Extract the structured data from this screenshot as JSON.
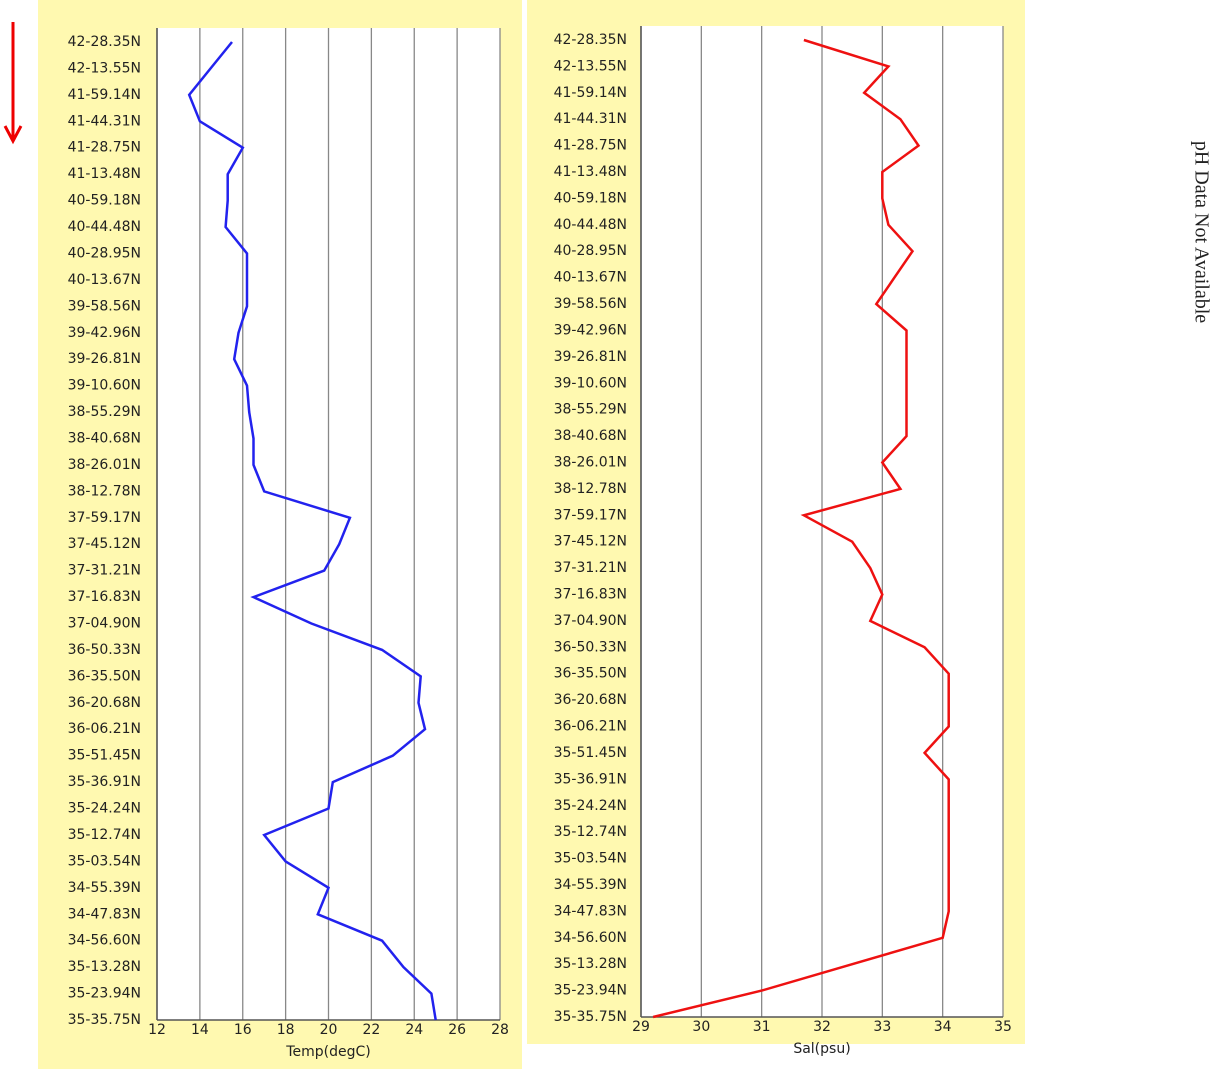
{
  "chart_data": [
    {
      "type": "line",
      "orientation": "horizontal",
      "color": "#2222ee",
      "xlabel": "Temp(degC)",
      "categories": [
        "42-28.35N",
        "42-13.55N",
        "41-59.14N",
        "41-44.31N",
        "41-28.75N",
        "41-13.48N",
        "40-59.18N",
        "40-44.48N",
        "40-28.95N",
        "40-13.67N",
        "39-58.56N",
        "39-42.96N",
        "39-26.81N",
        "39-10.60N",
        "38-55.29N",
        "38-40.68N",
        "38-26.01N",
        "38-12.78N",
        "37-59.17N",
        "37-45.12N",
        "37-31.21N",
        "37-16.83N",
        "37-04.90N",
        "36-50.33N",
        "36-35.50N",
        "36-20.68N",
        "36-06.21N",
        "35-51.45N",
        "35-36.91N",
        "35-24.24N",
        "35-12.74N",
        "35-03.54N",
        "34-55.39N",
        "34-47.83N",
        "34-56.60N",
        "35-13.28N",
        "35-23.94N",
        "35-35.75N"
      ],
      "values": [
        15.5,
        14.5,
        13.5,
        14,
        16,
        15.3,
        15.3,
        15.2,
        16.2,
        16.2,
        16.2,
        15.8,
        15.6,
        16.2,
        16.3,
        16.5,
        16.5,
        17,
        21,
        20.5,
        19.8,
        16.5,
        19.2,
        22.5,
        24.3,
        24.2,
        24.5,
        23,
        20.2,
        20,
        17,
        18,
        20,
        19.5,
        22.5,
        23.5,
        24.8,
        25
      ],
      "xlim": [
        12,
        28
      ],
      "xticks": [
        12,
        14,
        16,
        18,
        20,
        22,
        24,
        26,
        28
      ],
      "grid": true
    },
    {
      "type": "line",
      "orientation": "horizontal",
      "color": "#ee1111",
      "xlabel": "Sal(psu)",
      "categories": [
        "42-28.35N",
        "42-13.55N",
        "41-59.14N",
        "41-44.31N",
        "41-28.75N",
        "41-13.48N",
        "40-59.18N",
        "40-44.48N",
        "40-28.95N",
        "40-13.67N",
        "39-58.56N",
        "39-42.96N",
        "39-26.81N",
        "39-10.60N",
        "38-55.29N",
        "38-40.68N",
        "38-26.01N",
        "38-12.78N",
        "37-59.17N",
        "37-45.12N",
        "37-31.21N",
        "37-16.83N",
        "37-04.90N",
        "36-50.33N",
        "36-35.50N",
        "36-20.68N",
        "36-06.21N",
        "35-51.45N",
        "35-36.91N",
        "35-24.24N",
        "35-12.74N",
        "35-03.54N",
        "34-55.39N",
        "34-47.83N",
        "34-56.60N",
        "35-13.28N",
        "35-23.94N",
        "35-35.75N"
      ],
      "values": [
        31.7,
        33.1,
        32.7,
        33.3,
        33.6,
        33,
        33,
        33.1,
        33.5,
        33.2,
        32.9,
        33.4,
        33.4,
        33.4,
        33.4,
        33.4,
        33,
        33.3,
        31.7,
        32.5,
        32.8,
        33,
        32.8,
        33.7,
        34.1,
        34.1,
        34.1,
        33.7,
        34.1,
        34.1,
        34.1,
        34.1,
        34.1,
        34.1,
        34,
        32.5,
        31,
        29.2
      ],
      "xlim": [
        29,
        35
      ],
      "xticks": [
        29,
        30,
        31,
        32,
        33,
        34,
        35
      ],
      "grid": true
    }
  ],
  "annotation": "pH Data Not Available"
}
